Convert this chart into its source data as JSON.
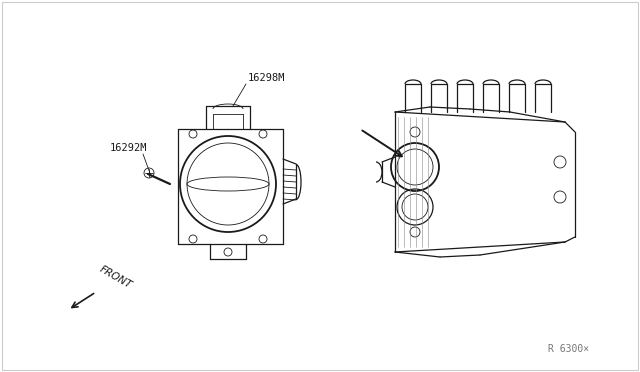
{
  "bg_color": "#ffffff",
  "border_color": "#cccccc",
  "line_color": "#1a1a1a",
  "label_16298M": "16298M",
  "label_16292M": "16292M",
  "label_front": "FRONT",
  "label_ref": "R 6300×",
  "lw": 0.9,
  "lw_thin": 0.6,
  "lw_thick": 1.3
}
